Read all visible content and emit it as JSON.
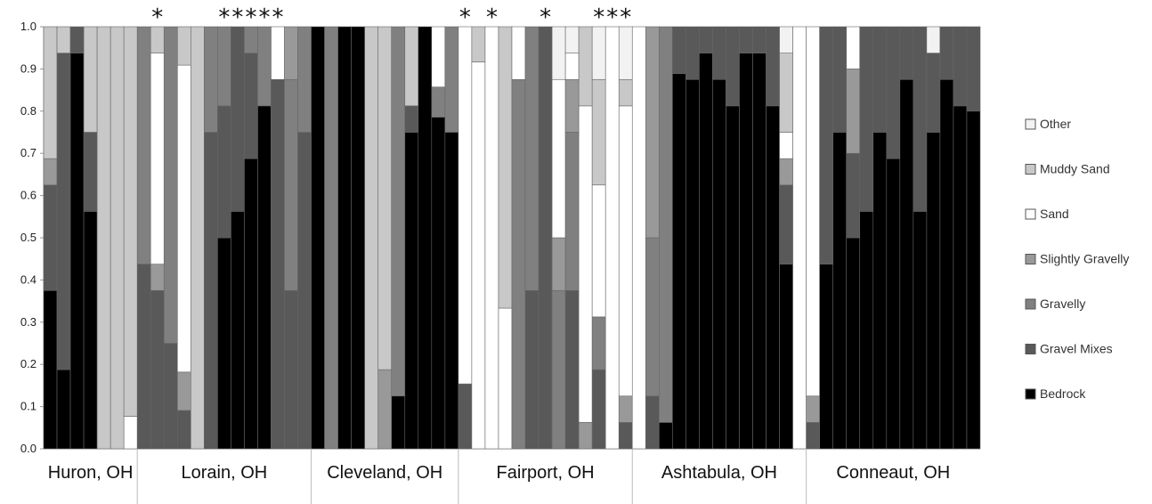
{
  "chart_data": {
    "type": "bar",
    "stacked": true,
    "normalized": true,
    "ylim": [
      0,
      1
    ],
    "yticks": [
      "0.0",
      "0.1",
      "0.2",
      "0.3",
      "0.4",
      "0.5",
      "0.6",
      "0.7",
      "0.8",
      "0.9",
      "1.0"
    ],
    "legend_position": "right",
    "grid": false,
    "categories_sites": [
      "Huron, OH",
      "Lorain, OH",
      "Cleveland, OH",
      "Fairport, OH",
      "Ashtabula, OH",
      "Conneaut, OH"
    ],
    "series_colors": {
      "Bedrock": "#000000",
      "Gravel Mixes": "#595959",
      "Gravelly": "#808080",
      "Slightly Gravelly": "#999999",
      "Sand": "#ffffff",
      "Muddy Sand": "#c8c8c8",
      "Other": "#f2f2f2"
    },
    "legend_entries": [
      "Other",
      "Muddy Sand",
      "Sand",
      "Slightly Gravelly",
      "Gravelly",
      "Gravel Mixes",
      "Bedrock"
    ],
    "bars": [
      {
        "site": "Huron, OH",
        "sig": false,
        "Bedrock": 0.375,
        "Gravel Mixes": 0.25,
        "Slightly Gravelly": 0.0625,
        "Muddy Sand": 0.3125
      },
      {
        "site": "Huron, OH",
        "sig": false,
        "Bedrock": 0.1875,
        "Gravel Mixes": 0.75,
        "Muddy Sand": 0.0625
      },
      {
        "site": "Huron, OH",
        "sig": false,
        "Bedrock": 0.9375,
        "Gravel Mixes": 0.0625
      },
      {
        "site": "Huron, OH",
        "sig": false,
        "Bedrock": 0.5625,
        "Gravel Mixes": 0.1875,
        "Muddy Sand": 0.25
      },
      {
        "site": "Huron, OH",
        "sig": false,
        "Muddy Sand": 1.0
      },
      {
        "site": "Huron, OH",
        "sig": false,
        "Muddy Sand": 1.0
      },
      {
        "site": "Huron, OH",
        "sig": false,
        "Sand": 0.0769,
        "Muddy Sand": 0.9231
      },
      {
        "site": "Lorain, OH",
        "sig": false,
        "Gravel Mixes": 0.4375,
        "Gravelly": 0.5625
      },
      {
        "site": "Lorain, OH",
        "sig": true,
        "Gravel Mixes": 0.375,
        "Slightly Gravelly": 0.0625,
        "Sand": 0.5,
        "Muddy Sand": 0.0625
      },
      {
        "site": "Lorain, OH",
        "sig": false,
        "Gravel Mixes": 0.25,
        "Gravelly": 0.75
      },
      {
        "site": "Lorain, OH",
        "sig": false,
        "Gravel Mixes": 0.0909,
        "Slightly Gravelly": 0.0909,
        "Sand": 0.7273,
        "Muddy Sand": 0.0909
      },
      {
        "site": "Lorain, OH",
        "sig": false,
        "Muddy Sand": 1.0
      },
      {
        "site": "Lorain, OH",
        "sig": false,
        "Gravel Mixes": 0.75,
        "Gravelly": 0.25
      },
      {
        "site": "Lorain, OH",
        "sig": true,
        "Bedrock": 0.5,
        "Gravel Mixes": 0.3125,
        "Gravelly": 0.1875
      },
      {
        "site": "Lorain, OH",
        "sig": true,
        "Bedrock": 0.5625,
        "Gravel Mixes": 0.4375
      },
      {
        "site": "Lorain, OH",
        "sig": true,
        "Bedrock": 0.6875,
        "Gravel Mixes": 0.25,
        "Gravelly": 0.0625
      },
      {
        "site": "Lorain, OH",
        "sig": true,
        "Bedrock": 0.8125,
        "Gravelly": 0.1875
      },
      {
        "site": "Lorain, OH",
        "sig": true,
        "Gravel Mixes": 0.875,
        "Sand": 0.125
      },
      {
        "site": "Lorain, OH",
        "sig": false,
        "Gravel Mixes": 0.375,
        "Gravelly": 0.5,
        "Slightly Gravelly": 0.125
      },
      {
        "site": "Lorain, OH",
        "sig": false,
        "Gravel Mixes": 0.75,
        "Gravelly": 0.25
      },
      {
        "site": "Cleveland, OH",
        "sig": false,
        "Bedrock": 1.0
      },
      {
        "site": "Cleveland, OH",
        "sig": false,
        "Gravelly": 1.0
      },
      {
        "site": "Cleveland, OH",
        "sig": false,
        "Bedrock": 1.0
      },
      {
        "site": "Cleveland, OH",
        "sig": false,
        "Bedrock": 1.0
      },
      {
        "site": "Cleveland, OH",
        "sig": false,
        "Muddy Sand": 1.0
      },
      {
        "site": "Cleveland, OH",
        "sig": false,
        "Slightly Gravelly": 0.1875,
        "Muddy Sand": 0.8125
      },
      {
        "site": "Cleveland, OH",
        "sig": false,
        "Bedrock": 0.125,
        "Gravelly": 0.875
      },
      {
        "site": "Cleveland, OH",
        "sig": false,
        "Bedrock": 0.75,
        "Gravel Mixes": 0.0625,
        "Muddy Sand": 0.1875
      },
      {
        "site": "Cleveland, OH",
        "sig": false,
        "Bedrock": 1.0
      },
      {
        "site": "Cleveland, OH",
        "sig": false,
        "Bedrock": 0.7857,
        "Gravelly": 0.0714,
        "Sand": 0.1429
      },
      {
        "site": "Cleveland, OH",
        "sig": false,
        "Bedrock": 0.75,
        "Gravelly": 0.25
      },
      {
        "site": "Fairport, OH",
        "sig": true,
        "Gravel Mixes": 0.1538,
        "Sand": 0.8462
      },
      {
        "site": "Fairport, OH",
        "sig": false,
        "Sand": 0.9167,
        "Muddy Sand": 0.0833
      },
      {
        "site": "Fairport, OH",
        "sig": true,
        "Sand": 1.0
      },
      {
        "site": "Fairport, OH",
        "sig": false,
        "Sand": 0.3333,
        "Muddy Sand": 0.6667
      },
      {
        "site": "Fairport, OH",
        "sig": false,
        "Gravelly": 0.875,
        "Sand": 0.125
      },
      {
        "site": "Fairport, OH",
        "sig": false,
        "Gravelly": 0.625,
        "Gravel Mixes": 0.375
      },
      {
        "site": "Fairport, OH",
        "sig": true,
        "Gravel Mixes": 1.0
      },
      {
        "site": "Fairport, OH",
        "sig": false,
        "Gravelly": 0.375,
        "Slightly Gravelly": 0.125,
        "Sand": 0.375,
        "Other": 0.125
      },
      {
        "site": "Fairport, OH",
        "sig": false,
        "Gravel Mixes": 0.375,
        "Gravelly": 0.375,
        "Slightly Gravelly": 0.125,
        "Sand": 0.0625,
        "Other": 0.0625
      },
      {
        "site": "Fairport, OH",
        "sig": false,
        "Slightly Gravelly": 0.0625,
        "Muddy Sand": 0.1875,
        "Sand": 0.75
      },
      {
        "site": "Fairport, OH",
        "sig": true,
        "Gravel Mixes": 0.1875,
        "Gravelly": 0.125,
        "Muddy Sand": 0.25,
        "Sand": 0.3125,
        "Other": 0.125
      },
      {
        "site": "Fairport, OH",
        "sig": true,
        "Sand": 1.0
      },
      {
        "site": "Fairport, OH",
        "sig": true,
        "Gravel Mixes": 0.0625,
        "Slightly Gravelly": 0.0625,
        "Muddy Sand": 0.0625,
        "Sand": 0.6875,
        "Other": 0.125
      },
      {
        "site": "Ashtabula, OH",
        "sig": false,
        "Sand": 1.0
      },
      {
        "site": "Ashtabula, OH",
        "sig": false,
        "Gravel Mixes": 0.125,
        "Slightly Gravelly": 0.5,
        "Gravelly": 0.375
      },
      {
        "site": "Ashtabula, OH",
        "sig": false,
        "Bedrock": 0.0625,
        "Gravelly": 0.9375
      },
      {
        "site": "Ashtabula, OH",
        "sig": false,
        "Bedrock": 0.8889,
        "Gravel Mixes": 0.1111
      },
      {
        "site": "Ashtabula, OH",
        "sig": false,
        "Bedrock": 0.875,
        "Gravel Mixes": 0.125
      },
      {
        "site": "Ashtabula, OH",
        "sig": false,
        "Bedrock": 0.9375,
        "Gravel Mixes": 0.0625
      },
      {
        "site": "Ashtabula, OH",
        "sig": false,
        "Bedrock": 0.875,
        "Gravel Mixes": 0.125
      },
      {
        "site": "Ashtabula, OH",
        "sig": false,
        "Bedrock": 0.8125,
        "Gravel Mixes": 0.1875
      },
      {
        "site": "Ashtabula, OH",
        "sig": false,
        "Bedrock": 0.9375,
        "Gravel Mixes": 0.0625
      },
      {
        "site": "Ashtabula, OH",
        "sig": false,
        "Bedrock": 0.9375,
        "Gravel Mixes": 0.0625
      },
      {
        "site": "Ashtabula, OH",
        "sig": false,
        "Bedrock": 0.8125,
        "Gravel Mixes": 0.1875
      },
      {
        "site": "Ashtabula, OH",
        "sig": false,
        "Bedrock": 0.4375,
        "Gravel Mixes": 0.1875,
        "Slightly Gravelly": 0.0625,
        "Sand": 0.0625,
        "Muddy Sand": 0.1875,
        "Other": 0.0625
      },
      {
        "site": "Ashtabula, OH",
        "sig": false,
        "Sand": 1.0
      },
      {
        "site": "Conneaut, OH",
        "sig": false,
        "Gravel Mixes": 0.0625,
        "Slightly Gravelly": 0.0625,
        "Sand": 0.875
      },
      {
        "site": "Conneaut, OH",
        "sig": false,
        "Bedrock": 0.4375,
        "Gravel Mixes": 0.5625
      },
      {
        "site": "Conneaut, OH",
        "sig": false,
        "Bedrock": 0.75,
        "Gravel Mixes": 0.25
      },
      {
        "site": "Conneaut, OH",
        "sig": false,
        "Bedrock": 0.5,
        "Gravel Mixes": 0.2,
        "Slightly Gravelly": 0.2,
        "Sand": 0.1
      },
      {
        "site": "Conneaut, OH",
        "sig": false,
        "Bedrock": 0.5625,
        "Gravel Mixes": 0.4375
      },
      {
        "site": "Conneaut, OH",
        "sig": false,
        "Bedrock": 0.75,
        "Gravel Mixes": 0.25
      },
      {
        "site": "Conneaut, OH",
        "sig": false,
        "Bedrock": 0.6875,
        "Gravel Mixes": 0.3125
      },
      {
        "site": "Conneaut, OH",
        "sig": false,
        "Bedrock": 0.875,
        "Gravel Mixes": 0.125
      },
      {
        "site": "Conneaut, OH",
        "sig": false,
        "Bedrock": 0.5625,
        "Gravel Mixes": 0.4375
      },
      {
        "site": "Conneaut, OH",
        "sig": false,
        "Bedrock": 0.75,
        "Gravel Mixes": 0.1875,
        "Other": 0.0625
      },
      {
        "site": "Conneaut, OH",
        "sig": false,
        "Bedrock": 0.875,
        "Gravel Mixes": 0.125
      },
      {
        "site": "Conneaut, OH",
        "sig": false,
        "Bedrock": 0.8125,
        "Gravel Mixes": 0.1875
      },
      {
        "site": "Conneaut, OH",
        "sig": false,
        "Bedrock": 0.8,
        "Gravel Mixes": 0.2
      }
    ]
  },
  "significance_marker": "*"
}
